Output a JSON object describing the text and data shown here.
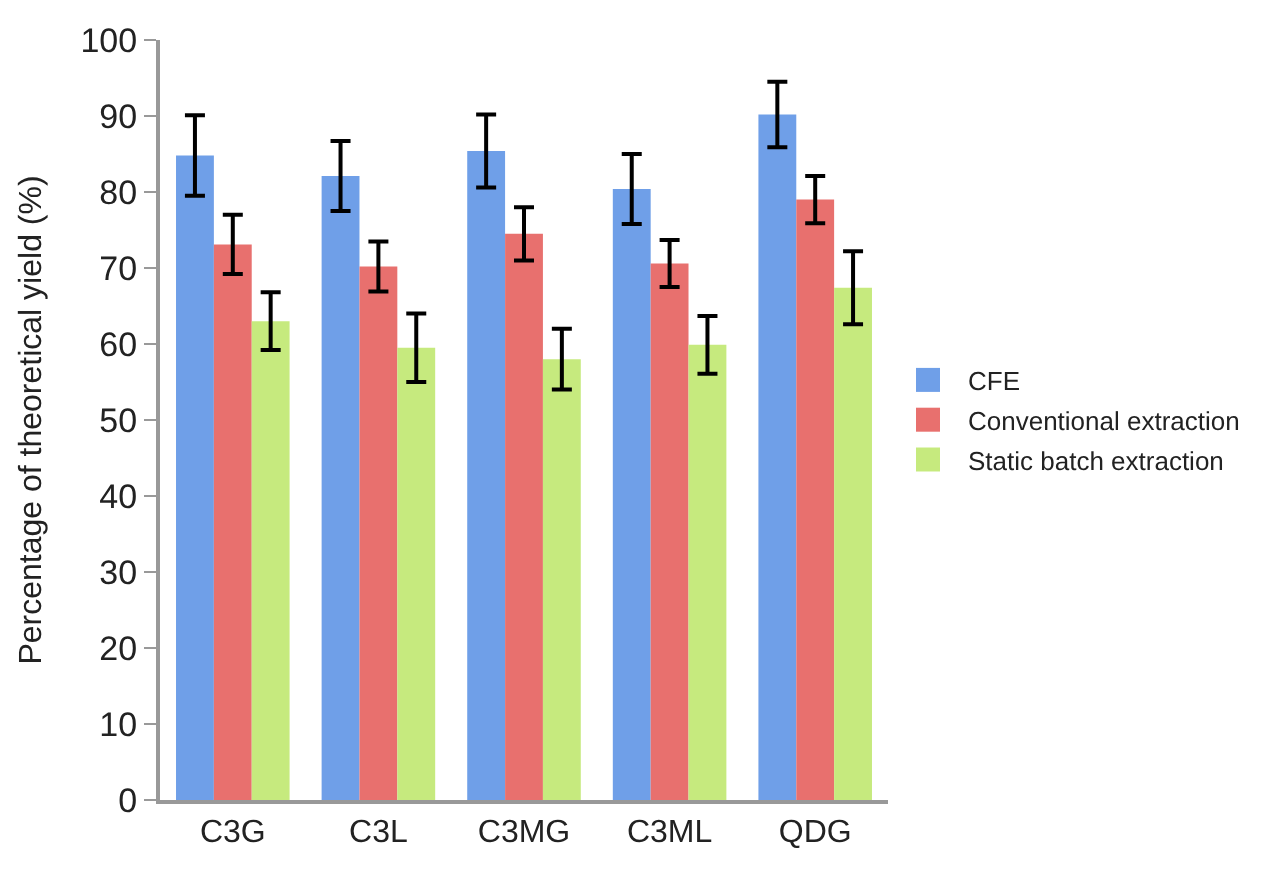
{
  "chart_data": {
    "type": "bar",
    "ylabel": "Percentage of theoretical yield (%)",
    "categories": [
      "C3G",
      "C3L",
      "C3MG",
      "C3ML",
      "QDG"
    ],
    "series": [
      {
        "name": "CFE",
        "color": "#6f9fe8",
        "values": [
          84.8,
          82.1,
          85.4,
          80.4,
          90.2
        ],
        "errors": [
          5.3,
          4.6,
          4.8,
          4.6,
          4.3
        ]
      },
      {
        "name": "Conventional extraction",
        "color": "#e8706e",
        "values": [
          73.1,
          70.2,
          74.5,
          70.6,
          79.0
        ],
        "errors": [
          3.9,
          3.3,
          3.5,
          3.1,
          3.1
        ]
      },
      {
        "name": "Static batch extraction",
        "color": "#c6ea7e",
        "values": [
          63.0,
          59.5,
          58.0,
          59.9,
          67.4
        ],
        "errors": [
          3.8,
          4.5,
          4.0,
          3.8,
          4.8
        ]
      }
    ],
    "ylim": [
      0,
      100
    ],
    "yticks": [
      0,
      10,
      20,
      30,
      40,
      50,
      60,
      70,
      80,
      90,
      100
    ],
    "legend": "right"
  }
}
